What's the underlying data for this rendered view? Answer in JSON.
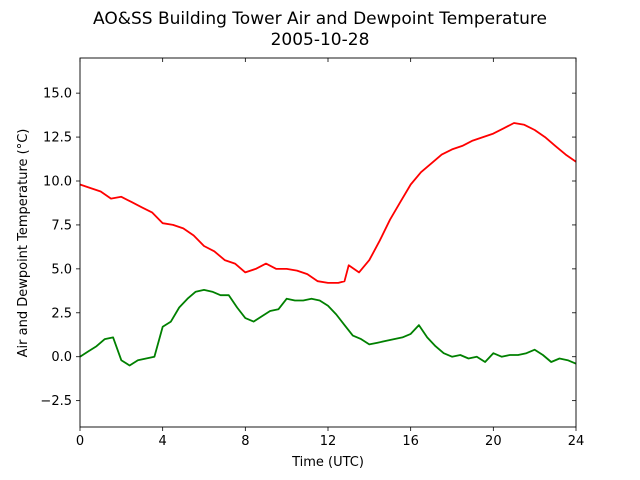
{
  "chart_data": {
    "type": "line",
    "title": "AO&SS Building Tower Air and Dewpoint Temperature",
    "subtitle": "2005-10-28",
    "xlabel": "Time (UTC)",
    "ylabel": "Air and Dewpoint Temperature (°C)",
    "xlim": [
      0,
      24
    ],
    "ylim": [
      -4.0,
      17.0
    ],
    "xticks": [
      0,
      4,
      8,
      12,
      16,
      20,
      24
    ],
    "xtick_labels": [
      "0",
      "4",
      "8",
      "12",
      "16",
      "20",
      "24"
    ],
    "yticks": [
      -2.5,
      0.0,
      2.5,
      5.0,
      7.5,
      10.0,
      12.5,
      15.0
    ],
    "ytick_labels": [
      "−2.5",
      "0.0",
      "2.5",
      "5.0",
      "7.5",
      "10.0",
      "12.5",
      "15.0"
    ],
    "grid": false,
    "legend": "none",
    "series": [
      {
        "color": "#ff0000",
        "x": [
          0,
          0.5,
          1,
          1.5,
          2,
          2.5,
          3,
          3.5,
          4,
          4.5,
          5,
          5.5,
          6,
          6.5,
          7,
          7.5,
          8,
          8.5,
          9,
          9.5,
          10,
          10.5,
          11,
          11.5,
          12,
          12.5,
          12.8,
          13,
          13.5,
          14,
          14.5,
          15,
          15.5,
          16,
          16.5,
          17,
          17.5,
          18,
          18.5,
          19,
          19.5,
          20,
          20.5,
          21,
          21.5,
          22,
          22.5,
          23,
          23.5,
          24
        ],
        "y": [
          9.8,
          9.6,
          9.4,
          9.0,
          9.1,
          8.8,
          8.5,
          8.2,
          7.6,
          7.5,
          7.3,
          6.9,
          6.3,
          6.0,
          5.5,
          5.3,
          4.8,
          5.0,
          5.3,
          5.0,
          5.0,
          4.9,
          4.7,
          4.3,
          4.2,
          4.2,
          4.3,
          5.2,
          4.8,
          5.5,
          6.6,
          7.8,
          8.8,
          9.8,
          10.5,
          11.0,
          11.5,
          11.8,
          12.0,
          12.3,
          12.5,
          12.7,
          13.0,
          13.3,
          13.2,
          12.9,
          12.5,
          12.0,
          11.5,
          11.1
        ]
      },
      {
        "color": "#008000",
        "x": [
          0,
          0.4,
          0.8,
          1.2,
          1.6,
          2,
          2.4,
          2.8,
          3.2,
          3.6,
          4,
          4.4,
          4.8,
          5.2,
          5.6,
          6,
          6.4,
          6.8,
          7.2,
          7.6,
          8,
          8.4,
          8.8,
          9.2,
          9.6,
          10,
          10.4,
          10.8,
          11.2,
          11.6,
          12,
          12.4,
          12.8,
          13.2,
          13.6,
          14,
          14.4,
          14.8,
          15.2,
          15.6,
          16,
          16.4,
          16.8,
          17.2,
          17.6,
          18,
          18.4,
          18.8,
          19.2,
          19.6,
          20,
          20.4,
          20.8,
          21.2,
          21.6,
          22,
          22.4,
          22.8,
          23.2,
          23.6,
          24
        ],
        "y": [
          0.0,
          0.3,
          0.6,
          1.0,
          1.1,
          -0.2,
          -0.5,
          -0.2,
          -0.1,
          0.0,
          1.7,
          2.0,
          2.8,
          3.3,
          3.7,
          3.8,
          3.7,
          3.5,
          3.5,
          2.8,
          2.2,
          2.0,
          2.3,
          2.6,
          2.7,
          3.3,
          3.2,
          3.2,
          3.3,
          3.2,
          2.9,
          2.4,
          1.8,
          1.2,
          1.0,
          0.7,
          0.8,
          0.9,
          1.0,
          1.1,
          1.3,
          1.8,
          1.1,
          0.6,
          0.2,
          0.0,
          0.1,
          -0.1,
          0.0,
          -0.3,
          0.2,
          0.0,
          0.1,
          0.1,
          0.2,
          0.4,
          0.1,
          -0.3,
          -0.1,
          -0.2,
          -0.4
        ]
      }
    ]
  }
}
